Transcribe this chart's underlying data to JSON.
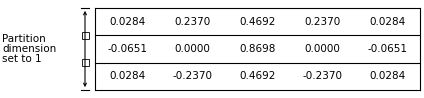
{
  "rows": [
    [
      "0.0284",
      "0.2370",
      "0.4692",
      "0.2370",
      "0.0284"
    ],
    [
      "-0.0651",
      "0.0000",
      "0.8698",
      "0.0000",
      "-0.0651"
    ],
    [
      "0.0284",
      "-0.2370",
      "0.4692",
      "-0.2370",
      "0.0284"
    ]
  ],
  "left_label_lines": [
    "Partition",
    "dimension",
    "set to 1"
  ],
  "background_color": "#ffffff",
  "text_color": "#000000",
  "font_size": 7.5,
  "label_font_size": 7.5
}
